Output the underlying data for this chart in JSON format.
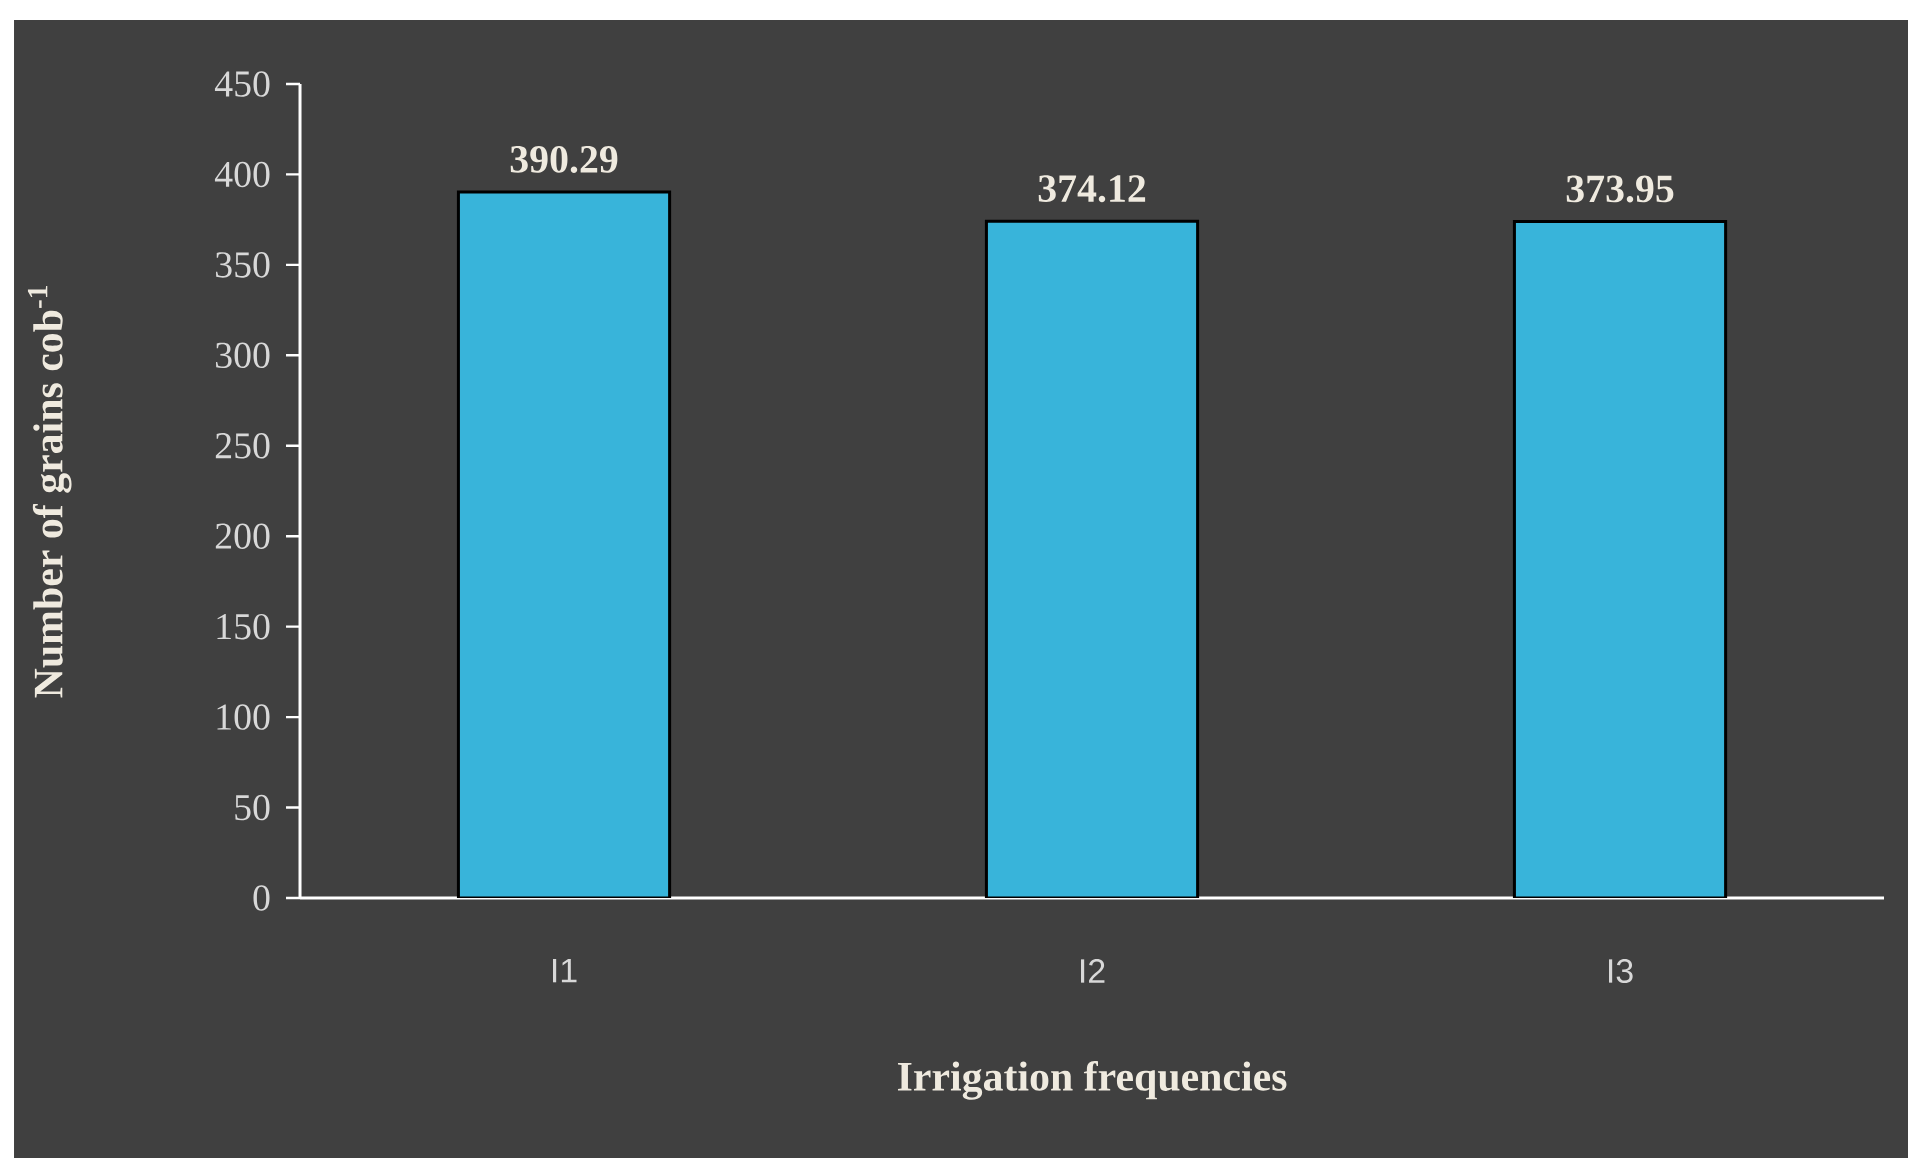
{
  "chart_data": {
    "type": "bar",
    "xlabel": "Irrigation frequencies",
    "ylabel": "Number of grains cob$^{-1}$",
    "categories": [
      "I1",
      "I2",
      "I3"
    ],
    "values": [
      390.29,
      374.12,
      373.95
    ],
    "color": "#38b4da",
    "ylim": [
      0,
      450
    ],
    "yticks": [
      0,
      50,
      100,
      150,
      200,
      250,
      300,
      350,
      400,
      450
    ],
    "data_labels": true
  }
}
